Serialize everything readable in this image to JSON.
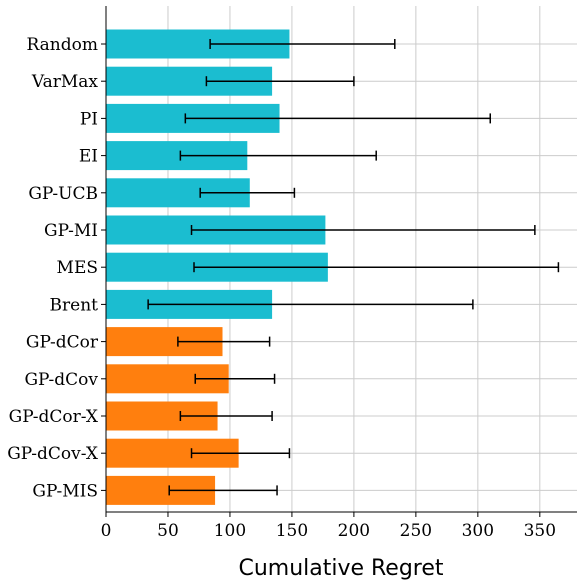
{
  "chart_data": {
    "type": "bar",
    "orientation": "horizontal",
    "title": "",
    "xlabel": "Cumulative Regret",
    "ylabel": "",
    "xlim": [
      0,
      380
    ],
    "x_ticks": [
      0,
      50,
      100,
      150,
      200,
      250,
      300,
      350
    ],
    "x_tick_labels": [
      "0",
      "50",
      "100",
      "150",
      "200",
      "250",
      "300",
      "350"
    ],
    "grid": true,
    "colors": {
      "baseline": "#1bbdd0",
      "proposed": "#ff7f0e"
    },
    "categories": [
      "Random",
      "VarMax",
      "PI",
      "EI",
      "GP-UCB",
      "GP-MI",
      "MES",
      "Brent",
      "GP-dCor",
      "GP-dCov",
      "GP-dCor-X",
      "GP-dCov-X",
      "GP-MIS"
    ],
    "values": [
      148,
      134,
      140,
      114,
      116,
      177,
      179,
      134,
      94,
      99,
      90,
      107,
      88
    ],
    "error_low": [
      84,
      81,
      64,
      60,
      76,
      69,
      71,
      34,
      58,
      72,
      60,
      69,
      51
    ],
    "error_high": [
      233,
      200,
      310,
      218,
      152,
      346,
      365,
      296,
      132,
      136,
      134,
      148,
      138
    ],
    "color_groups": [
      "baseline",
      "baseline",
      "baseline",
      "baseline",
      "baseline",
      "baseline",
      "baseline",
      "baseline",
      "proposed",
      "proposed",
      "proposed",
      "proposed",
      "proposed"
    ]
  }
}
